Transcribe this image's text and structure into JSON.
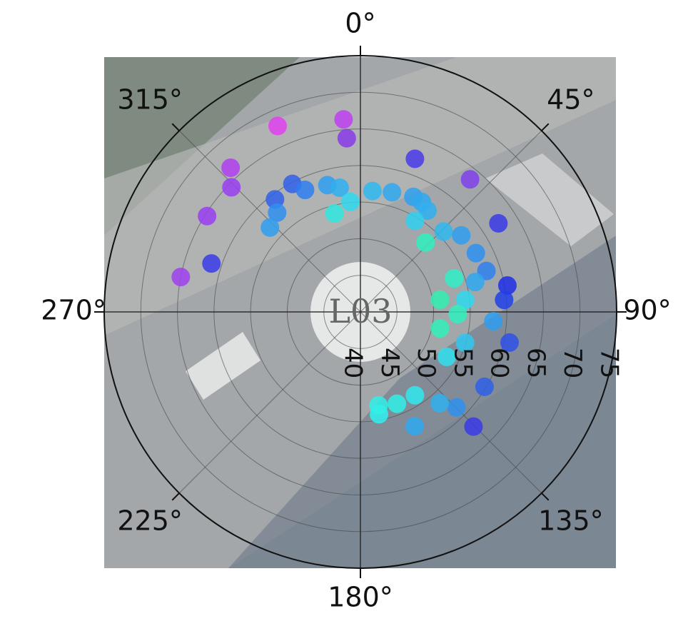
{
  "chart_data": {
    "type": "polar_scatter",
    "background_label": "L03",
    "rlim": [
      40,
      75
    ],
    "rticks": [
      40,
      45,
      50,
      55,
      60,
      65,
      70,
      75
    ],
    "thetaticks": [
      {
        "value": 0,
        "label": "0°"
      },
      {
        "value": 45,
        "label": "45°"
      },
      {
        "value": 90,
        "label": "90°"
      },
      {
        "value": 135,
        "label": "135°"
      },
      {
        "value": 180,
        "label": "180°"
      },
      {
        "value": 225,
        "label": "225°"
      },
      {
        "value": 270,
        "label": "270°"
      },
      {
        "value": 315,
        "label": "315°"
      }
    ],
    "direction": "clockwise",
    "grid": true,
    "series": [
      {
        "theta": [
          336,
          355,
          355.5,
          318,
          314,
          302,
          281,
          288,
          19.6,
          39.6,
          57.3,
          332,
          322.8,
          320,
          313,
          335.6,
          345.4,
          350.5,
          354.8,
          345.3,
          5.7,
          14.8,
          24.7,
          29.2,
          33.5,
          30.9,
          46,
          52.8,
          43.2,
          63,
          72,
          79.8,
          85.2,
          70.3,
          81.3,
          101.7,
          83.4,
          94,
          101.6,
          106.4,
          117.5,
          121.1,
          135.4,
          134.8,
          139,
          146.8,
          158.3,
          169.7,
          154.6,
          169,
          91.3,
          75.4
        ],
        "r": [
          67.8,
          66.4,
          63.8,
          66.5,
          64.5,
          64.7,
          65,
          61.4,
          62.2,
          63.5,
          62.4,
          59.8,
          59.3,
          57.7,
          56.9,
          58.3,
          57.9,
          57.2,
          55.1,
          53.9,
          56.6,
          56.9,
          57.3,
          57.2,
          56.6,
          54.5,
          55.8,
          57.3,
          53,
          57.7,
          58.1,
          60.4,
          59.7,
          53.6,
          51,
          51.1,
          54.4,
          58.2,
          60.8,
          54.9,
          53.3,
          59.8,
          62,
          58.5,
          56.5,
          53.6,
          53.5,
          54.2,
          57.3,
          53,
          53.3,
          56.2
        ],
        "colors": [
          "#e040f0",
          "#c040f0",
          "#8a3ae8",
          "#b03ef0",
          "#9a3ef0",
          "#9a3ef0",
          "#a040f0",
          "#3a3ae8",
          "#4a3ae8",
          "#8040ec",
          "#3a3ae8",
          "#3060e8",
          "#3060e8",
          "#2f8ef0",
          "#2f9ef0",
          "#2f7ef0",
          "#2f9ef0",
          "#2fb0f0",
          "#30d8f0",
          "#30e8e0",
          "#2fb8f0",
          "#2fa8f0",
          "#2fa0f0",
          "#2fa8f0",
          "#2fb0f0",
          "#30d0f0",
          "#2fb8f0",
          "#2f9ef0",
          "#30f0c0",
          "#2f90f0",
          "#2f80f0",
          "#1f2ee8",
          "#2040e8",
          "#30f0c8",
          "#30f0b0",
          "#30f0b8",
          "#30d8f0",
          "#2f9ef0",
          "#2f50e8",
          "#30c8f0",
          "#30e0f0",
          "#2f60e8",
          "#3a3ae8",
          "#2f90f0",
          "#2fb0f0",
          "#30e8f0",
          "#30f0e8",
          "#30f0f0",
          "#2fa8f0",
          "#30f0e8",
          "#30f0c0",
          "#2fa8f0"
        ]
      }
    ]
  }
}
